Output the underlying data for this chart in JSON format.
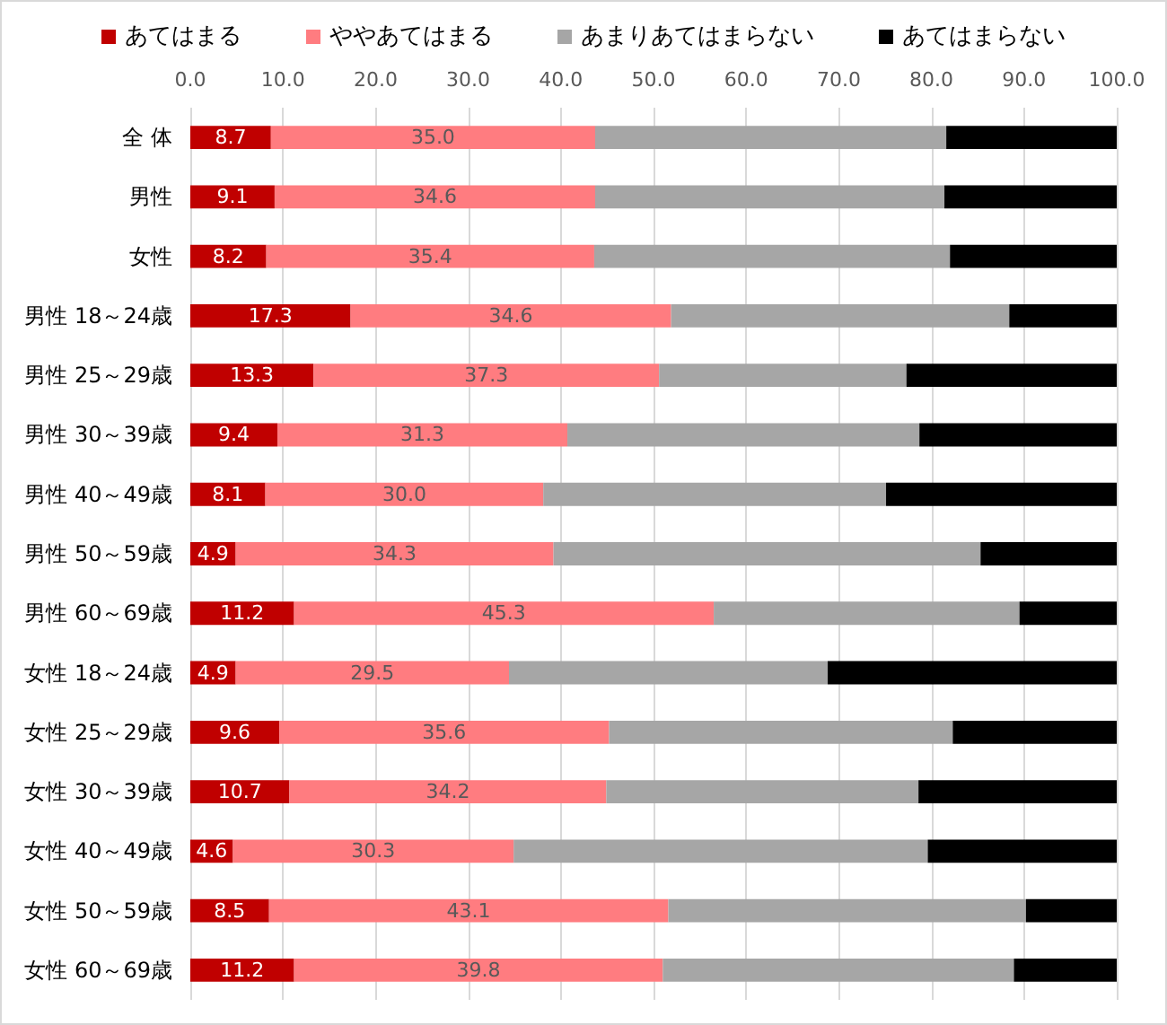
{
  "chart_data": {
    "type": "bar",
    "orientation": "horizontal",
    "stacked": true,
    "categories": [
      "全 体",
      "男性",
      "女性",
      "男性 18～24歳",
      "男性 25～29歳",
      "男性 30～39歳",
      "男性 40～49歳",
      "男性 50～59歳",
      "男性 60～69歳",
      "女性 18～24歳",
      "女性 25～29歳",
      "女性 30～39歳",
      "女性 40～49歳",
      "女性 50～59歳",
      "女性 60～69歳"
    ],
    "series": [
      {
        "name": "あてはまる",
        "color": "#c00000",
        "values": [
          8.7,
          9.1,
          8.2,
          17.3,
          13.3,
          9.4,
          8.1,
          4.9,
          11.2,
          4.9,
          9.6,
          10.7,
          4.6,
          8.5,
          11.2
        ],
        "value_labels": [
          "8.7",
          "9.1",
          "8.2",
          "17.3",
          "13.3",
          "9.4",
          "8.1",
          "4.9",
          "11.2",
          "4.9",
          "9.6",
          "10.7",
          "4.6",
          "8.5",
          "11.2"
        ]
      },
      {
        "name": "ややあてはまる",
        "color": "#ff7c80",
        "values": [
          35.0,
          34.6,
          35.4,
          34.6,
          37.3,
          31.3,
          30.0,
          34.3,
          45.3,
          29.5,
          35.6,
          34.2,
          30.3,
          43.1,
          39.8
        ],
        "value_labels": [
          "35.0",
          "34.6",
          "35.4",
          "34.6",
          "37.3",
          "31.3",
          "30.0",
          "34.3",
          "45.3",
          "29.5",
          "35.6",
          "34.2",
          "30.3",
          "43.1",
          "39.8"
        ]
      },
      {
        "name": "あまりあてはまらない",
        "color": "#a6a6a6",
        "values": [
          37.9,
          37.7,
          38.4,
          36.5,
          26.7,
          38.0,
          37.0,
          46.1,
          33.0,
          34.4,
          37.1,
          33.7,
          44.7,
          38.6,
          37.9
        ]
      },
      {
        "name": "あてはまらない",
        "color": "#000000",
        "values": [
          18.4,
          18.6,
          18.0,
          11.6,
          22.7,
          21.3,
          24.9,
          14.7,
          10.5,
          31.2,
          17.7,
          21.4,
          20.4,
          9.8,
          11.1
        ]
      }
    ],
    "xlim": [
      0,
      100
    ],
    "xticks": [
      {
        "value": 0,
        "label": "0.0"
      },
      {
        "value": 10,
        "label": "10.0"
      },
      {
        "value": 20,
        "label": "20.0"
      },
      {
        "value": 30,
        "label": "30.0"
      },
      {
        "value": 40,
        "label": "40.0"
      },
      {
        "value": 50,
        "label": "50.0"
      },
      {
        "value": 60,
        "label": "60.0"
      },
      {
        "value": 70,
        "label": "70.0"
      },
      {
        "value": 80,
        "label": "80.0"
      },
      {
        "value": 90,
        "label": "90.0"
      },
      {
        "value": 100,
        "label": "100.0"
      }
    ],
    "grid": "x",
    "legend": "top"
  }
}
